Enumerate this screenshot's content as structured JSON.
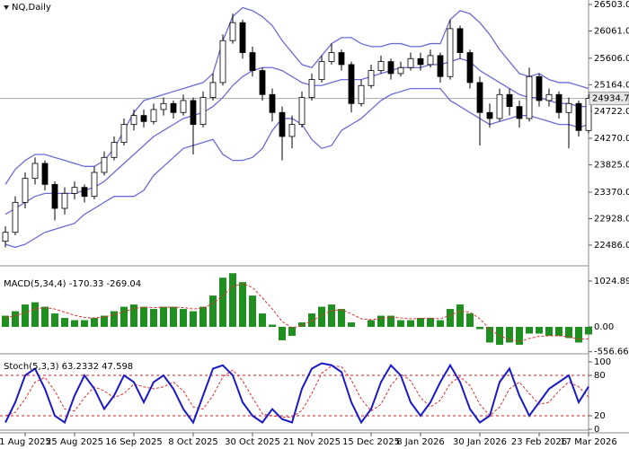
{
  "chart_data": [
    {
      "type": "candlestick",
      "title": "NQ,Daily",
      "categories": [
        null,
        null,
        "1 Aug 2025",
        null,
        null,
        null,
        null,
        "25 Aug 2025",
        null,
        null,
        null,
        null,
        null,
        "16 Sep 2025",
        null,
        null,
        null,
        null,
        null,
        "8 Oct 2025",
        null,
        null,
        null,
        null,
        null,
        "30 Oct 2025",
        null,
        null,
        null,
        null,
        null,
        "21 Nov 2025",
        null,
        null,
        null,
        null,
        null,
        "15 Dec 2025",
        null,
        null,
        null,
        null,
        "8 Jan 2026",
        null,
        null,
        null,
        null,
        null,
        "30 Jan 2026",
        null,
        null,
        null,
        null,
        null,
        "23 Feb 2026",
        null,
        null,
        null,
        null,
        "17 Mar 2026"
      ],
      "open": [
        22550,
        22700,
        23200,
        23600,
        23850,
        23500,
        23100,
        23350,
        23450,
        23300,
        23700,
        23950,
        24200,
        24500,
        24650,
        24550,
        24750,
        24850,
        24700,
        24900,
        24500,
        24950,
        25200,
        25900,
        26200,
        25700,
        25400,
        25000,
        24700,
        24300,
        24500,
        24950,
        25250,
        25550,
        25700,
        25500,
        24850,
        25150,
        25400,
        25550,
        25350,
        25450,
        25600,
        25500,
        25650,
        25300,
        26100,
        25700,
        25200,
        24700,
        24600,
        25000,
        24800,
        24600,
        25300,
        24900,
        25000,
        24700,
        24850,
        24400
      ],
      "high": [
        22800,
        23300,
        23700,
        23950,
        23900,
        23550,
        23450,
        23550,
        23500,
        23800,
        24050,
        24300,
        24600,
        24750,
        24750,
        24850,
        24950,
        24900,
        25000,
        24950,
        25050,
        25350,
        26000,
        26350,
        26250,
        25800,
        25450,
        25100,
        24800,
        24650,
        25050,
        25350,
        25650,
        25850,
        25750,
        25550,
        25250,
        25500,
        25650,
        25600,
        25550,
        25700,
        25700,
        25750,
        25700,
        26250,
        26150,
        25750,
        25300,
        24850,
        25100,
        25100,
        24900,
        25450,
        25350,
        25100,
        25050,
        24950,
        24900,
        25000
      ],
      "low": [
        22450,
        22650,
        23100,
        23500,
        23400,
        22900,
        23000,
        23250,
        23200,
        23250,
        23650,
        23900,
        24150,
        24400,
        24450,
        24500,
        24650,
        24600,
        24650,
        24000,
        24450,
        24900,
        25150,
        25850,
        25600,
        25300,
        24900,
        24550,
        23900,
        24100,
        24450,
        24900,
        25200,
        25500,
        25400,
        24700,
        24800,
        25100,
        25350,
        25250,
        25300,
        25400,
        25400,
        25450,
        25200,
        25250,
        25600,
        25100,
        24150,
        24450,
        24550,
        24650,
        24450,
        24550,
        24800,
        24800,
        24600,
        24100,
        24300,
        24350
      ],
      "close": [
        22700,
        23200,
        23600,
        23850,
        23500,
        23100,
        23350,
        23450,
        23300,
        23700,
        23950,
        24200,
        24500,
        24650,
        24550,
        24750,
        24850,
        24700,
        24900,
        24500,
        24950,
        25200,
        25900,
        26200,
        25700,
        25400,
        25000,
        24700,
        24300,
        24500,
        24950,
        25250,
        25550,
        25700,
        25500,
        24850,
        25150,
        25400,
        25550,
        25350,
        25450,
        25600,
        25500,
        25650,
        25300,
        26100,
        25700,
        25200,
        24700,
        24600,
        25000,
        24800,
        24600,
        25300,
        24900,
        25000,
        24700,
        24850,
        24400,
        24935
      ],
      "bollinger": {
        "color": "#6b6bd6",
        "upper": [
          23500,
          23750,
          23900,
          24000,
          24000,
          23950,
          23900,
          23850,
          23800,
          23800,
          23900,
          24100,
          24400,
          24700,
          24900,
          24950,
          25000,
          25050,
          25100,
          25150,
          25200,
          25350,
          25900,
          26300,
          26450,
          26400,
          26300,
          26150,
          25900,
          25700,
          25500,
          25450,
          25650,
          25850,
          25950,
          25950,
          25850,
          25800,
          25800,
          25850,
          25850,
          25800,
          25800,
          25850,
          25850,
          26250,
          26400,
          26350,
          26200,
          26000,
          25750,
          25550,
          25350,
          25300,
          25350,
          25250,
          25200,
          25200,
          25150,
          25100
        ],
        "middle": [
          23000,
          23100,
          23200,
          23300,
          23350,
          23350,
          23350,
          23350,
          23400,
          23450,
          23550,
          23700,
          23850,
          24000,
          24150,
          24300,
          24400,
          24500,
          24600,
          24650,
          24700,
          24800,
          24950,
          25150,
          25300,
          25400,
          25450,
          25450,
          25400,
          25300,
          25200,
          25150,
          25150,
          25200,
          25250,
          25250,
          25250,
          25300,
          25350,
          25400,
          25450,
          25450,
          25450,
          25500,
          25500,
          25550,
          25600,
          25550,
          25400,
          25300,
          25200,
          25100,
          25000,
          24950,
          24950,
          24900,
          24850,
          24850,
          24800,
          24800
        ],
        "lower": [
          22500,
          22450,
          22500,
          22600,
          22700,
          22750,
          22800,
          22850,
          23000,
          23100,
          23200,
          23300,
          23300,
          23300,
          23400,
          23650,
          23800,
          23950,
          24100,
          24150,
          24200,
          24250,
          24000,
          23900,
          23900,
          23950,
          24100,
          24400,
          24600,
          24600,
          24500,
          24250,
          24100,
          24150,
          24400,
          24500,
          24600,
          24750,
          24900,
          25000,
          25050,
          25100,
          25100,
          25100,
          25100,
          24900,
          24800,
          24700,
          24600,
          24500,
          24550,
          24600,
          24650,
          24650,
          24600,
          24550,
          24500,
          24500,
          24450,
          24500
        ]
      },
      "last_price": 24934.7,
      "ylim": [
        22156,
        26578
      ],
      "yticks": [
        {
          "value": 26503,
          "label": "26503.0"
        },
        {
          "value": 26061,
          "label": "26061.0"
        },
        {
          "value": 25606,
          "label": "25606.0"
        },
        {
          "value": 25164,
          "label": "25164.0"
        },
        {
          "value": 24722,
          "label": "24722.0"
        },
        {
          "value": 24270,
          "label": "24270.0"
        },
        {
          "value": 23825,
          "label": "23825.0"
        },
        {
          "value": 23370,
          "label": "23370.0"
        },
        {
          "value": 22928,
          "label": "22928.0"
        },
        {
          "value": 22486,
          "label": "22486.0"
        }
      ]
    },
    {
      "type": "macd",
      "title": "MACD(5,34,4) -170.33 -269.04",
      "histogram": {
        "color": "#1f8f1f",
        "values": [
          250,
          350,
          500,
          550,
          450,
          300,
          200,
          150,
          150,
          200,
          250,
          350,
          450,
          500,
          450,
          400,
          450,
          450,
          400,
          350,
          450,
          700,
          1100,
          1200,
          1000,
          700,
          300,
          50,
          -300,
          -200,
          100,
          300,
          450,
          500,
          400,
          100,
          0,
          150,
          250,
          250,
          150,
          150,
          200,
          200,
          150,
          400,
          500,
          300,
          -50,
          -350,
          -400,
          -350,
          -400,
          -150,
          -150,
          -200,
          -200,
          -250,
          -350,
          -170.33
        ]
      },
      "signal": {
        "color": "#e03030",
        "values": [
          200,
          250,
          320,
          400,
          430,
          400,
          330,
          260,
          210,
          200,
          220,
          270,
          340,
          410,
          440,
          430,
          440,
          440,
          430,
          400,
          420,
          520,
          700,
          900,
          970,
          880,
          650,
          400,
          120,
          -20,
          30,
          130,
          260,
          360,
          390,
          290,
          180,
          160,
          190,
          220,
          200,
          180,
          190,
          195,
          180,
          260,
          350,
          330,
          180,
          -50,
          -200,
          -280,
          -330,
          -260,
          -210,
          -200,
          -200,
          -220,
          -270,
          -269.04
        ]
      },
      "ylim": [
        -582,
        1345
      ],
      "yticks": [
        1024.89,
        {
          "value": 0,
          "label": "0.00"
        },
        -556.66
      ]
    },
    {
      "type": "stochastic",
      "title": "Stoch(5,3,3) 63.2332 47.598",
      "k": {
        "color": "#1a1ac8",
        "values": [
          10,
          40,
          80,
          90,
          60,
          20,
          10,
          50,
          80,
          60,
          30,
          50,
          80,
          70,
          40,
          70,
          80,
          60,
          30,
          10,
          50,
          90,
          95,
          80,
          40,
          20,
          10,
          30,
          15,
          10,
          60,
          90,
          98,
          95,
          85,
          40,
          10,
          30,
          70,
          95,
          80,
          40,
          20,
          40,
          70,
          95,
          70,
          30,
          10,
          20,
          70,
          90,
          50,
          20,
          40,
          60,
          70,
          80,
          40,
          63.2332
        ]
      },
      "d": {
        "color": "#e03030",
        "values": [
          20,
          25,
          45,
          70,
          77,
          57,
          30,
          27,
          47,
          63,
          57,
          47,
          53,
          67,
          63,
          60,
          63,
          70,
          57,
          33,
          30,
          50,
          78,
          88,
          72,
          47,
          23,
          20,
          18,
          18,
          28,
          53,
          83,
          94,
          93,
          73,
          45,
          27,
          37,
          65,
          82,
          72,
          47,
          33,
          43,
          68,
          78,
          65,
          37,
          20,
          33,
          60,
          70,
          53,
          37,
          40,
          57,
          70,
          63,
          47.598
        ]
      },
      "levels": [
        20,
        80
      ],
      "ylim": [
        0,
        100
      ],
      "yticks": [
        100,
        80,
        20,
        0
      ]
    }
  ]
}
